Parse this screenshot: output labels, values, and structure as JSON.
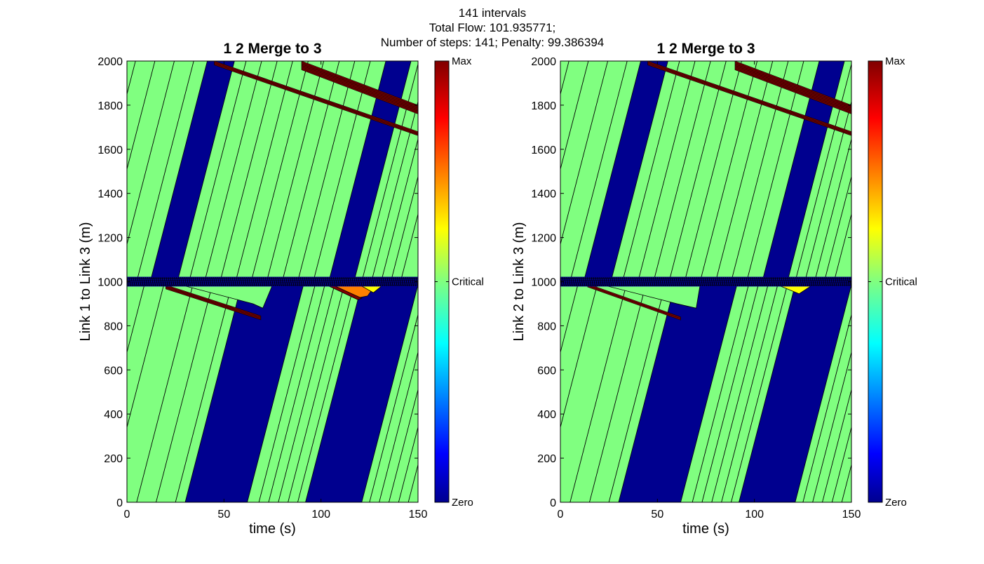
{
  "figure": {
    "suptitle_lines": [
      "141 intervals",
      "Total Flow: 101.935771;",
      "Number of steps: 141; Penalty: 99.386394"
    ]
  },
  "colors": {
    "zero": "#00008f",
    "critical": "#80ff80",
    "max": "#800000",
    "orange": "#ff8000",
    "yellow": "#ffff00",
    "grid_line": "#000000"
  },
  "chart_data": [
    {
      "type": "heatmap",
      "title": "1 2 Merge to 3",
      "xlabel": "time (s)",
      "ylabel": "Link 1 to Link 3   (m)",
      "xlim": [
        0,
        150
      ],
      "ylim": [
        0,
        2000
      ],
      "xticks": [
        0,
        50,
        100,
        150
      ],
      "yticks": [
        0,
        200,
        400,
        600,
        800,
        1000,
        1200,
        1400,
        1600,
        1800,
        2000
      ],
      "colorbar": {
        "labels": [
          "Max",
          "Critical",
          "Zero"
        ],
        "positions": [
          1,
          0.5,
          0
        ]
      },
      "background": "zero",
      "free_flow_speed_m_per_s": 34,
      "interface_position_m": 1000,
      "lower_link_green_bands": [
        [
          -48,
          30
        ],
        [
          62,
          92
        ],
        [
          121,
          200
        ]
      ],
      "upper_link_green_bands": [
        [
          -30,
          12
        ],
        [
          26,
          104
        ],
        [
          117,
          200
        ]
      ],
      "upper_link_right_fill_start_s": 128,
      "wave_lines_lower": [
        -40,
        -30,
        -20,
        -10,
        5,
        15,
        25,
        68,
        73,
        78,
        83,
        88,
        125,
        130,
        135,
        140,
        145
      ],
      "wave_lines_upper": [
        -25,
        -15,
        -5,
        5,
        32,
        40,
        48,
        56,
        64,
        72,
        80,
        88,
        96,
        121,
        126,
        131,
        136,
        141
      ],
      "congestion_bands": [
        {
          "color": "max",
          "t0": 20,
          "t1": 69,
          "x0": 985,
          "x1": 845,
          "width_m": 18
        },
        {
          "color": "max",
          "t0": 45,
          "t1": 150,
          "x0": 2000,
          "x1": 1680,
          "width_m": 18
        },
        {
          "color": "max",
          "t0": 90,
          "t1": 150,
          "x0": 2000,
          "x1": 1800,
          "width_m": 40
        }
      ],
      "patches": [
        {
          "color": "critical",
          "points": [
            [
              28,
              985
            ],
            [
              65,
              900
            ],
            [
              70,
              880
            ],
            [
              75,
              985
            ]
          ]
        },
        {
          "color": "orange",
          "points": [
            [
              105,
              985
            ],
            [
              118,
              925
            ],
            [
              124,
              935
            ],
            [
              128,
              985
            ]
          ]
        },
        {
          "color": "yellow",
          "points": [
            [
              120,
              985
            ],
            [
              127,
              950
            ],
            [
              132,
              985
            ]
          ]
        },
        {
          "color": "max",
          "points": [
            [
              104,
              980
            ],
            [
              119,
              918
            ],
            [
              121,
              925
            ],
            [
              106,
              985
            ]
          ]
        }
      ]
    },
    {
      "type": "heatmap",
      "title": "1 2 Merge to 3",
      "xlabel": "time (s)",
      "ylabel": "Link 2 to Link 3   (m)",
      "xlim": [
        0,
        150
      ],
      "ylim": [
        0,
        2000
      ],
      "xticks": [
        0,
        50,
        100,
        150
      ],
      "yticks": [
        0,
        200,
        400,
        600,
        800,
        1000,
        1200,
        1400,
        1600,
        1800,
        2000
      ],
      "colorbar": {
        "labels": [
          "Max",
          "Critical",
          "Zero"
        ],
        "positions": [
          1,
          0.5,
          0
        ]
      },
      "background": "zero",
      "free_flow_speed_m_per_s": 34,
      "interface_position_m": 1000,
      "lower_link_green_bands": [
        [
          -48,
          30
        ],
        [
          62,
          92
        ],
        [
          121,
          200
        ]
      ],
      "upper_link_green_bands": [
        [
          -30,
          12
        ],
        [
          26,
          104
        ],
        [
          117,
          200
        ]
      ],
      "upper_link_right_fill_start_s": 128,
      "wave_lines_lower": [
        -40,
        -30,
        -20,
        -10,
        5,
        15,
        25,
        68,
        73,
        78,
        83,
        88,
        125,
        130,
        135,
        140,
        145
      ],
      "wave_lines_upper": [
        -25,
        -15,
        -5,
        5,
        32,
        40,
        48,
        56,
        64,
        72,
        80,
        88,
        96,
        121,
        126,
        131,
        136,
        141
      ],
      "congestion_bands": [
        {
          "color": "max",
          "t0": 14,
          "t1": 62,
          "x0": 990,
          "x1": 840,
          "width_m": 14
        },
        {
          "color": "max",
          "t0": 45,
          "t1": 150,
          "x0": 2000,
          "x1": 1680,
          "width_m": 18
        },
        {
          "color": "max",
          "t0": 90,
          "t1": 150,
          "x0": 2000,
          "x1": 1800,
          "width_m": 40
        }
      ],
      "patches": [
        {
          "color": "critical",
          "points": [
            [
              22,
              985
            ],
            [
              60,
              900
            ],
            [
              70,
              880
            ],
            [
              72,
              985
            ]
          ]
        },
        {
          "color": "yellow",
          "points": [
            [
              112,
              985
            ],
            [
              123,
              945
            ],
            [
              130,
              985
            ]
          ]
        }
      ]
    }
  ]
}
